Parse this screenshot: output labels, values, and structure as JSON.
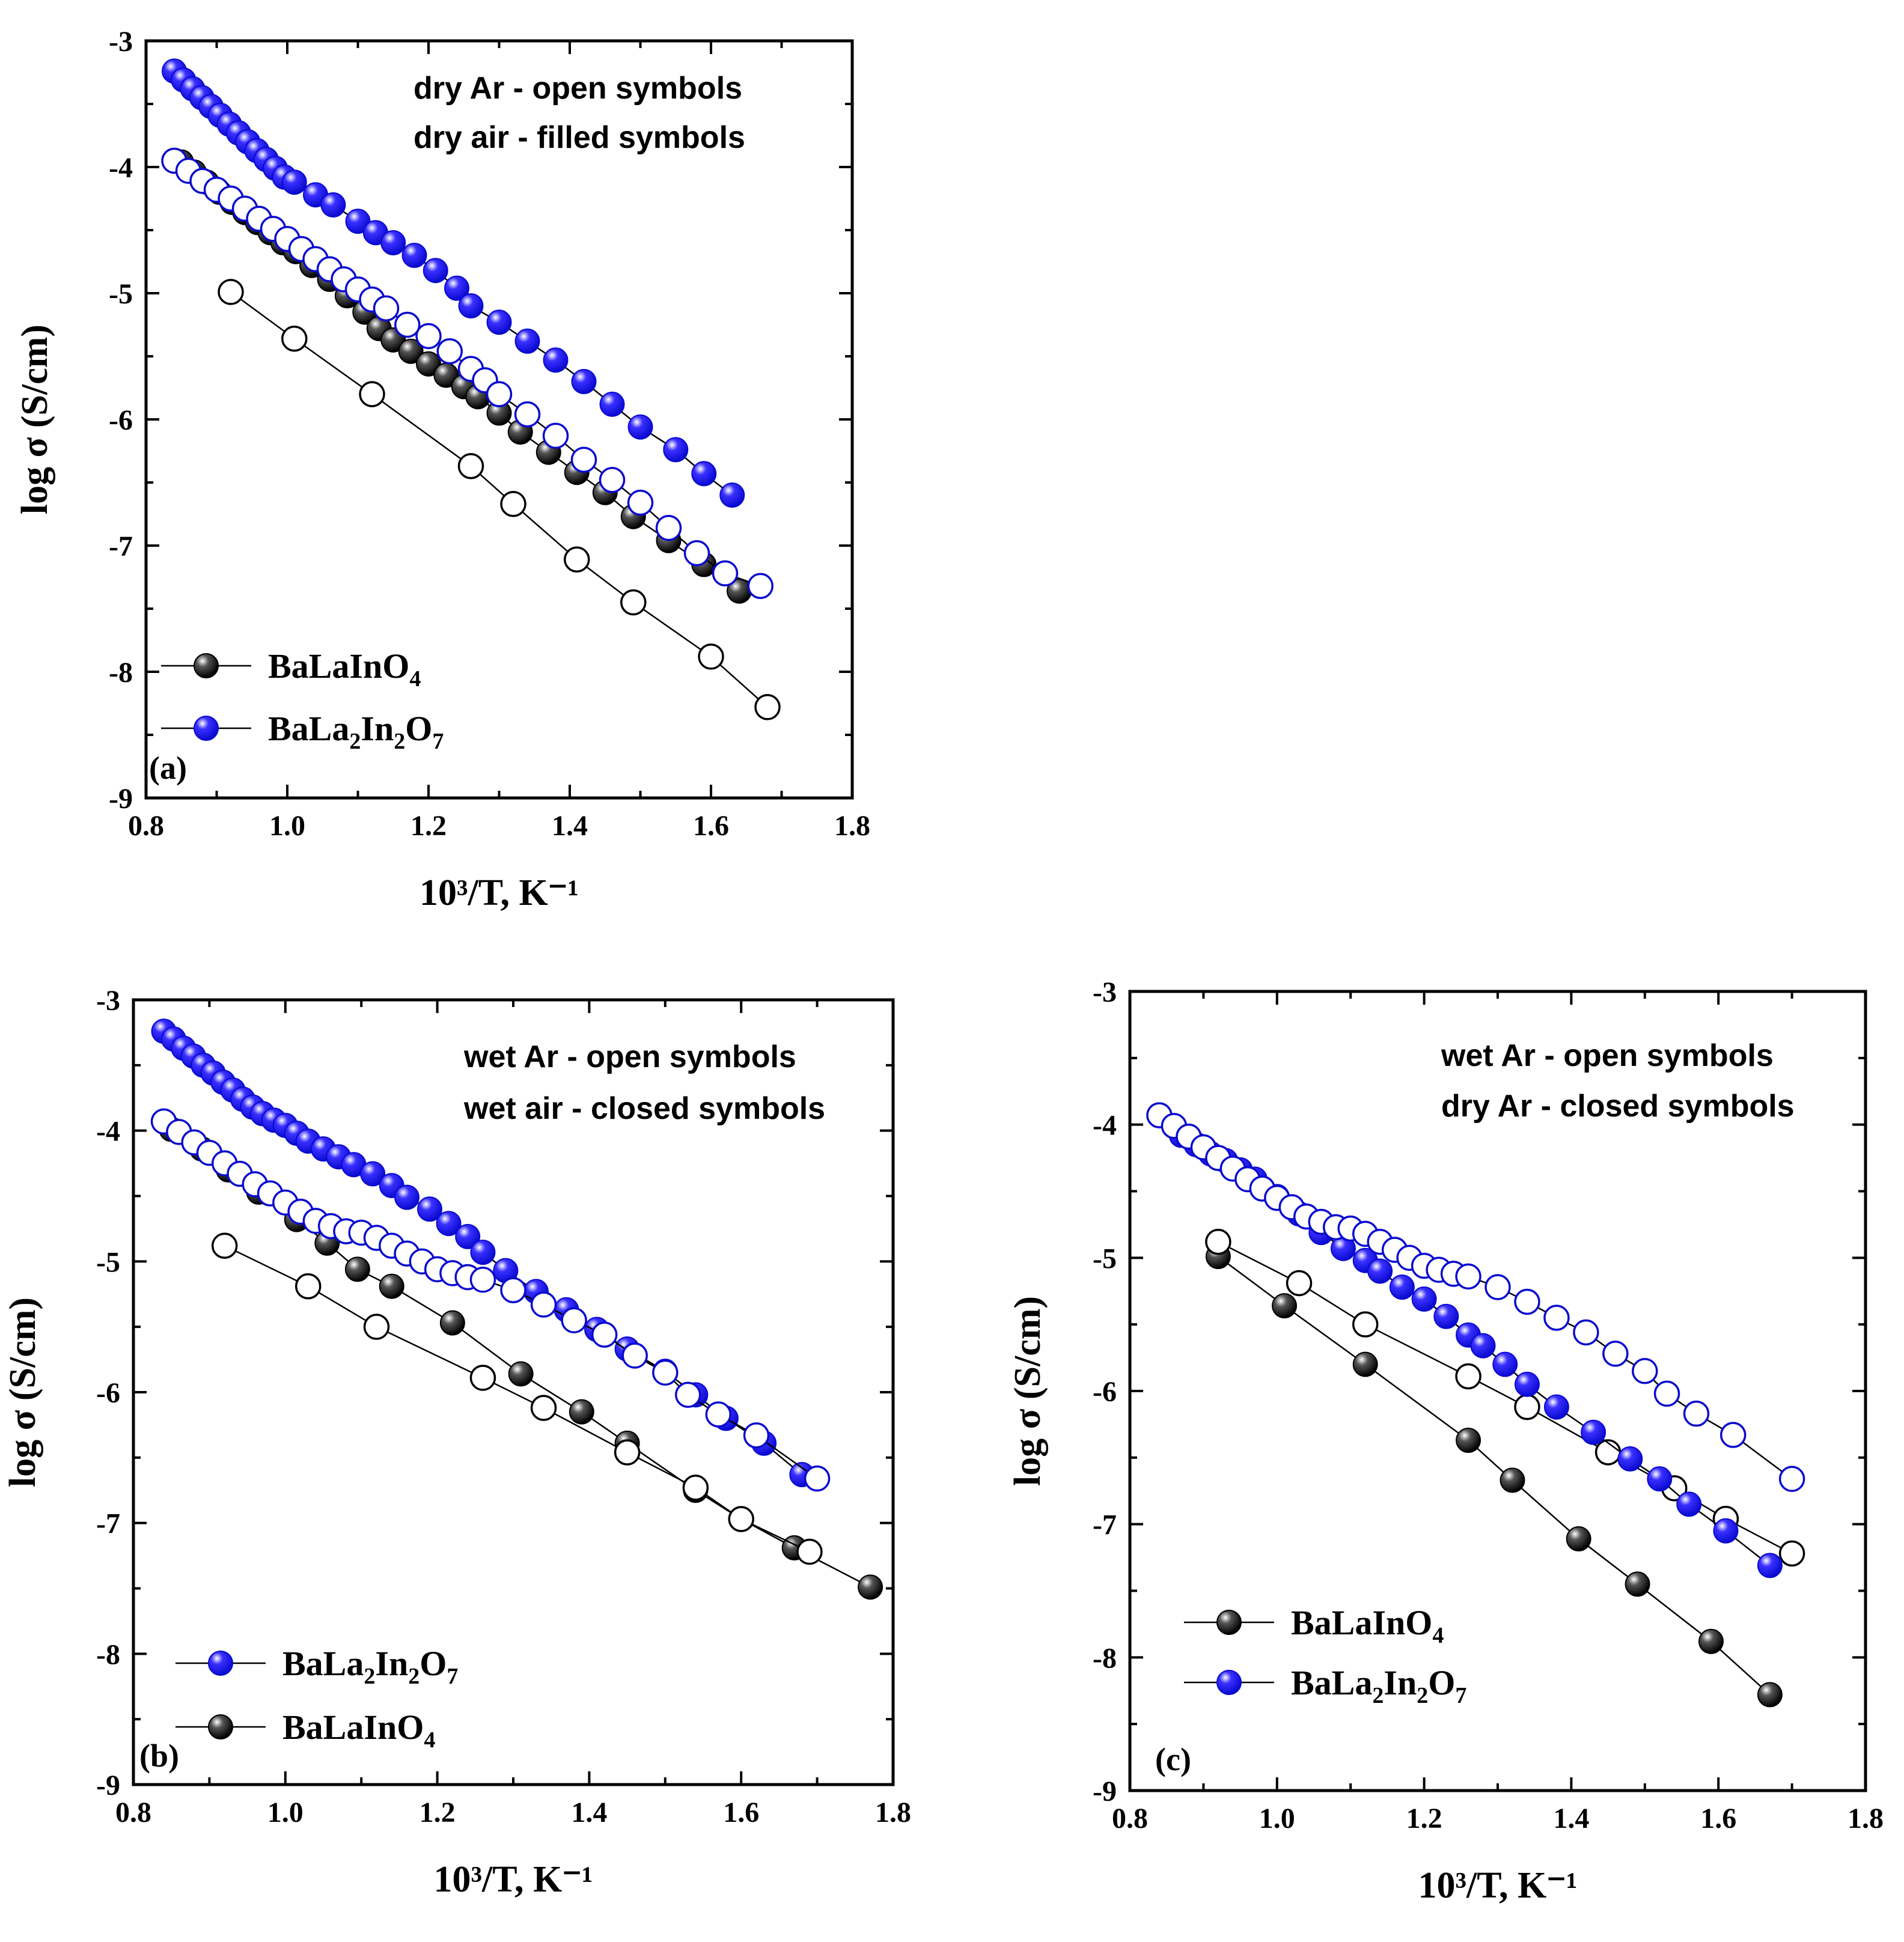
{
  "colors": {
    "black_fill": "#111111",
    "blue_fill": "#1a14e6",
    "blue_stroke": "#0a0ad0",
    "black_stroke": "#000000"
  },
  "chart_data": [
    {
      "id": "a",
      "type": "scatter",
      "panel_label": "(a)",
      "xlabel": "10³/T, K⁻¹",
      "ylabel": "log σ (S/cm)",
      "xlim": [
        0.8,
        1.8
      ],
      "ylim": [
        -9,
        -3
      ],
      "xticks": [
        0.8,
        1.0,
        1.2,
        1.4,
        1.6,
        1.8
      ],
      "yticks": [
        -9,
        -8,
        -7,
        -6,
        -5,
        -4,
        -3
      ],
      "xtick_labels": [
        "0.8",
        "1.0",
        "1.2",
        "1.4",
        "1.6",
        "1.8"
      ],
      "ytick_labels": [
        "-9",
        "-8",
        "-7",
        "-6",
        "-5",
        "-4",
        "-3"
      ],
      "annotations": [
        "dry Ar - open symbols",
        "dry air - filled symbols"
      ],
      "legend": [
        {
          "base": "BaLaInO",
          "parts": [
            [
              "BaLaInO",
              ""
            ],
            [
              "4",
              "sub"
            ]
          ],
          "color": "black"
        },
        {
          "base": "BaLa2In2O7",
          "parts": [
            [
              "BaLa",
              ""
            ],
            [
              "2",
              "sub"
            ],
            [
              "In",
              ""
            ],
            [
              "2",
              "sub"
            ],
            [
              "O",
              ""
            ],
            [
              "7",
              "sub"
            ]
          ],
          "color": "blue"
        }
      ],
      "legend_order": [
        "BaLaInO4",
        "BaLa2In2O7"
      ],
      "series": [
        {
          "name": "BaLaInO4 dry air",
          "color": "black",
          "filled": true,
          "x": [
            0.85,
            0.868,
            0.886,
            0.904,
            0.922,
            0.94,
            0.958,
            0.976,
            0.994,
            1.012,
            1.035,
            1.06,
            1.085,
            1.11,
            1.13,
            1.15,
            1.175,
            1.2,
            1.225,
            1.25,
            1.27,
            1.3,
            1.33,
            1.37,
            1.41,
            1.45,
            1.49,
            1.54,
            1.59,
            1.64
          ],
          "y": [
            -3.96,
            -4.04,
            -4.12,
            -4.2,
            -4.28,
            -4.36,
            -4.44,
            -4.52,
            -4.6,
            -4.67,
            -4.78,
            -4.89,
            -5.02,
            -5.15,
            -5.28,
            -5.37,
            -5.46,
            -5.56,
            -5.65,
            -5.74,
            -5.82,
            -5.95,
            -6.1,
            -6.26,
            -6.42,
            -6.58,
            -6.77,
            -6.96,
            -7.15,
            -7.36
          ]
        },
        {
          "name": "BaLaInO4 dry Ar",
          "color": "black",
          "filled": false,
          "x": [
            0.92,
            1.01,
            1.12,
            1.26,
            1.32,
            1.41,
            1.49,
            1.6,
            1.68
          ],
          "y": [
            -4.99,
            -5.36,
            -5.8,
            -6.37,
            -6.67,
            -7.11,
            -7.45,
            -7.88,
            -8.28
          ]
        },
        {
          "name": "BaLa2In2O7 dry air",
          "color": "blue",
          "filled": true,
          "x": [
            0.84,
            0.853,
            0.866,
            0.879,
            0.892,
            0.905,
            0.918,
            0.931,
            0.944,
            0.957,
            0.97,
            0.983,
            0.996,
            1.01,
            1.04,
            1.065,
            1.1,
            1.125,
            1.15,
            1.18,
            1.21,
            1.24,
            1.26,
            1.3,
            1.34,
            1.38,
            1.42,
            1.46,
            1.5,
            1.55,
            1.59,
            1.63
          ],
          "y": [
            -3.24,
            -3.31,
            -3.38,
            -3.45,
            -3.52,
            -3.59,
            -3.66,
            -3.73,
            -3.8,
            -3.87,
            -3.94,
            -4.01,
            -4.08,
            -4.12,
            -4.22,
            -4.3,
            -4.43,
            -4.52,
            -4.6,
            -4.7,
            -4.82,
            -4.96,
            -5.1,
            -5.23,
            -5.38,
            -5.53,
            -5.7,
            -5.88,
            -6.06,
            -6.24,
            -6.43,
            -6.6
          ]
        },
        {
          "name": "BaLa2In2O7 dry Ar",
          "color": "blue",
          "filled": false,
          "x": [
            0.84,
            0.86,
            0.88,
            0.9,
            0.92,
            0.94,
            0.96,
            0.98,
            1.0,
            1.02,
            1.04,
            1.06,
            1.08,
            1.1,
            1.12,
            1.14,
            1.17,
            1.2,
            1.23,
            1.26,
            1.28,
            1.3,
            1.34,
            1.38,
            1.42,
            1.46,
            1.5,
            1.54,
            1.58,
            1.62,
            1.67
          ],
          "y": [
            -3.95,
            -4.03,
            -4.11,
            -4.18,
            -4.25,
            -4.33,
            -4.41,
            -4.49,
            -4.57,
            -4.65,
            -4.73,
            -4.81,
            -4.89,
            -4.97,
            -5.05,
            -5.12,
            -5.25,
            -5.34,
            -5.46,
            -5.6,
            -5.69,
            -5.8,
            -5.96,
            -6.13,
            -6.32,
            -6.48,
            -6.66,
            -6.86,
            -7.06,
            -7.22,
            -7.32
          ]
        }
      ]
    },
    {
      "id": "b",
      "type": "scatter",
      "panel_label": "(b)",
      "xlabel": "10³/T, K⁻¹",
      "ylabel": "log σ (S/cm)",
      "xlim": [
        0.8,
        1.8
      ],
      "ylim": [
        -9,
        -3
      ],
      "xticks": [
        0.8,
        1.0,
        1.2,
        1.4,
        1.6,
        1.8
      ],
      "yticks": [
        -9,
        -8,
        -7,
        -6,
        -5,
        -4,
        -3
      ],
      "xtick_labels": [
        "0.8",
        "1.0",
        "1.2",
        "1.4",
        "1.6",
        "1.8"
      ],
      "ytick_labels": [
        "-9",
        "-8",
        "-7",
        "-6",
        "-5",
        "-4",
        "-3"
      ],
      "annotations": [
        "wet Ar - open symbols",
        "wet air - closed symbols"
      ],
      "legend": [
        {
          "base": "BaLa2In2O7",
          "parts": [
            [
              "BaLa",
              ""
            ],
            [
              "2",
              "sub"
            ],
            [
              "In",
              ""
            ],
            [
              "2",
              "sub"
            ],
            [
              "O",
              ""
            ],
            [
              "7",
              "sub"
            ]
          ],
          "color": "blue"
        },
        {
          "base": "BaLaInO",
          "parts": [
            [
              "BaLaInO",
              ""
            ],
            [
              "4",
              "sub"
            ]
          ],
          "color": "black"
        }
      ],
      "legend_order": [
        "BaLa2In2O7",
        "BaLaInO4"
      ],
      "series": [
        {
          "name": "BaLaInO4 wet air",
          "color": "black",
          "filled": true,
          "x": [
            0.85,
            0.89,
            0.925,
            0.965,
            1.015,
            1.055,
            1.095,
            1.14,
            1.22,
            1.31,
            1.39,
            1.45,
            1.54,
            1.6,
            1.67,
            1.77
          ],
          "y": [
            -3.99,
            -4.14,
            -4.3,
            -4.47,
            -4.68,
            -4.86,
            -5.06,
            -5.19,
            -5.47,
            -5.86,
            -6.15,
            -6.39,
            -6.75,
            -6.97,
            -7.19,
            -7.49
          ]
        },
        {
          "name": "BaLaInO4 wet Ar",
          "color": "black",
          "filled": false,
          "x": [
            0.92,
            1.03,
            1.12,
            1.26,
            1.34,
            1.45,
            1.54,
            1.6,
            1.69
          ],
          "y": [
            -4.88,
            -5.19,
            -5.5,
            -5.89,
            -6.12,
            -6.46,
            -6.73,
            -6.97,
            -7.22
          ]
        },
        {
          "name": "BaLa2In2O7 wet air",
          "color": "blue",
          "filled": true,
          "x": [
            0.84,
            0.853,
            0.866,
            0.879,
            0.892,
            0.905,
            0.918,
            0.931,
            0.944,
            0.957,
            0.97,
            0.985,
            1.0,
            1.015,
            1.03,
            1.05,
            1.07,
            1.09,
            1.115,
            1.14,
            1.16,
            1.19,
            1.215,
            1.24,
            1.26,
            1.29,
            1.33,
            1.37,
            1.41,
            1.45,
            1.5,
            1.54,
            1.58,
            1.63,
            1.68
          ],
          "y": [
            -3.24,
            -3.3,
            -3.37,
            -3.43,
            -3.5,
            -3.56,
            -3.63,
            -3.69,
            -3.76,
            -3.82,
            -3.87,
            -3.92,
            -3.96,
            -4.02,
            -4.08,
            -4.14,
            -4.2,
            -4.26,
            -4.33,
            -4.42,
            -4.51,
            -4.6,
            -4.71,
            -4.81,
            -4.93,
            -5.07,
            -5.23,
            -5.37,
            -5.52,
            -5.67,
            -5.84,
            -6.02,
            -6.2,
            -6.39,
            -6.63
          ]
        },
        {
          "name": "BaLa2In2O7 wet Ar",
          "color": "blue",
          "filled": false,
          "x": [
            0.84,
            0.86,
            0.88,
            0.9,
            0.92,
            0.94,
            0.96,
            0.98,
            1.0,
            1.02,
            1.04,
            1.06,
            1.08,
            1.1,
            1.12,
            1.14,
            1.16,
            1.18,
            1.2,
            1.22,
            1.24,
            1.26,
            1.3,
            1.34,
            1.38,
            1.42,
            1.46,
            1.5,
            1.53,
            1.57,
            1.62,
            1.7
          ],
          "y": [
            -3.93,
            -4.01,
            -4.09,
            -4.17,
            -4.25,
            -4.33,
            -4.41,
            -4.48,
            -4.55,
            -4.62,
            -4.69,
            -4.73,
            -4.77,
            -4.78,
            -4.82,
            -4.88,
            -4.94,
            -5.0,
            -5.06,
            -5.09,
            -5.12,
            -5.14,
            -5.22,
            -5.33,
            -5.45,
            -5.56,
            -5.72,
            -5.85,
            -6.02,
            -6.17,
            -6.33,
            -6.66
          ]
        }
      ]
    },
    {
      "id": "c",
      "type": "scatter",
      "panel_label": "(c)",
      "xlabel": "10³/T, K⁻¹",
      "ylabel": "log σ (S/cm)",
      "xlim": [
        0.8,
        1.8
      ],
      "ylim": [
        -9,
        -3
      ],
      "xticks": [
        0.8,
        1.0,
        1.2,
        1.4,
        1.6,
        1.8
      ],
      "yticks": [
        -9,
        -8,
        -7,
        -6,
        -5,
        -4,
        -3
      ],
      "xtick_labels": [
        "0.8",
        "1.0",
        "1.2",
        "1.4",
        "1.6",
        "1.8"
      ],
      "ytick_labels": [
        "-9",
        "-8",
        "-7",
        "-6",
        "-5",
        "-4",
        "-3"
      ],
      "annotations": [
        "wet Ar - open symbols",
        "dry Ar - closed symbols"
      ],
      "legend": [
        {
          "base": "BaLaInO",
          "parts": [
            [
              "BaLaInO",
              ""
            ],
            [
              "4",
              "sub"
            ]
          ],
          "color": "black"
        },
        {
          "base": "BaLa2In2O7",
          "parts": [
            [
              "BaLa",
              ""
            ],
            [
              "2",
              "sub"
            ],
            [
              "In",
              ""
            ],
            [
              "2",
              "sub"
            ],
            [
              "O",
              ""
            ],
            [
              "7",
              "sub"
            ]
          ],
          "color": "blue"
        }
      ],
      "legend_order": [
        "BaLaInO4",
        "BaLa2In2O7"
      ],
      "series": [
        {
          "name": "BaLaInO4 dry Ar",
          "color": "black",
          "filled": true,
          "x": [
            0.92,
            1.01,
            1.12,
            1.26,
            1.32,
            1.41,
            1.49,
            1.59,
            1.67
          ],
          "y": [
            -4.99,
            -5.36,
            -5.8,
            -6.37,
            -6.67,
            -7.11,
            -7.45,
            -7.88,
            -8.28
          ]
        },
        {
          "name": "BaLaInO4 wet Ar",
          "color": "black",
          "filled": false,
          "x": [
            0.92,
            1.03,
            1.12,
            1.26,
            1.34,
            1.45,
            1.54,
            1.61,
            1.7
          ],
          "y": [
            -4.88,
            -5.19,
            -5.5,
            -5.89,
            -6.12,
            -6.46,
            -6.73,
            -6.96,
            -7.22
          ]
        },
        {
          "name": "BaLa2In2O7 dry Ar",
          "color": "blue",
          "filled": true,
          "x": [
            0.87,
            0.89,
            0.91,
            0.93,
            0.95,
            0.97,
            1.0,
            1.03,
            1.06,
            1.09,
            1.12,
            1.14,
            1.17,
            1.2,
            1.23,
            1.26,
            1.28,
            1.31,
            1.34,
            1.38,
            1.43,
            1.48,
            1.52,
            1.56,
            1.61,
            1.67
          ],
          "y": [
            -4.08,
            -4.15,
            -4.22,
            -4.27,
            -4.34,
            -4.41,
            -4.54,
            -4.67,
            -4.81,
            -4.93,
            -5.02,
            -5.1,
            -5.22,
            -5.31,
            -5.44,
            -5.58,
            -5.66,
            -5.8,
            -5.95,
            -6.12,
            -6.31,
            -6.51,
            -6.66,
            -6.85,
            -7.05,
            -7.31
          ]
        },
        {
          "name": "BaLa2In2O7 wet Ar",
          "color": "blue",
          "filled": false,
          "x": [
            0.84,
            0.86,
            0.88,
            0.9,
            0.92,
            0.94,
            0.96,
            0.98,
            1.0,
            1.02,
            1.04,
            1.06,
            1.08,
            1.1,
            1.12,
            1.14,
            1.16,
            1.18,
            1.2,
            1.22,
            1.24,
            1.26,
            1.3,
            1.34,
            1.38,
            1.42,
            1.46,
            1.5,
            1.53,
            1.57,
            1.62,
            1.7
          ],
          "y": [
            -3.93,
            -4.01,
            -4.09,
            -4.17,
            -4.25,
            -4.33,
            -4.41,
            -4.48,
            -4.55,
            -4.62,
            -4.69,
            -4.73,
            -4.77,
            -4.78,
            -4.82,
            -4.88,
            -4.94,
            -5.0,
            -5.06,
            -5.09,
            -5.12,
            -5.14,
            -5.22,
            -5.33,
            -5.45,
            -5.56,
            -5.72,
            -5.85,
            -6.02,
            -6.17,
            -6.33,
            -6.66
          ]
        }
      ]
    }
  ]
}
